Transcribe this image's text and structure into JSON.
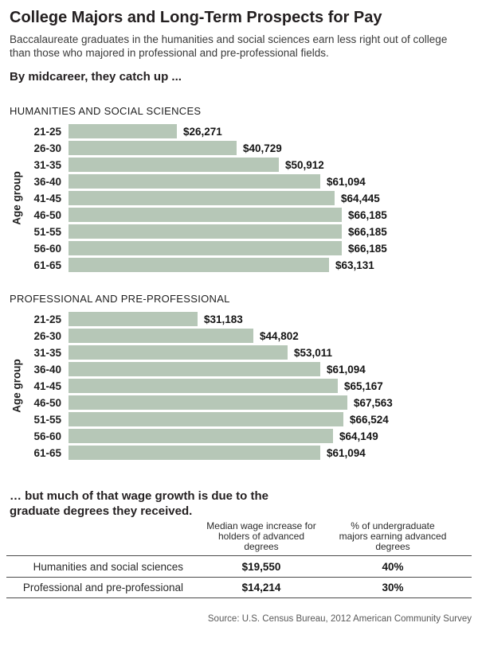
{
  "header": {
    "title": "College Majors and Long-Term Prospects for Pay",
    "subtitle": "Baccalaureate graduates in the humanities and social sciences earn less right out of college than those who majored in professional and pre-professional fields.",
    "midcareer_heading": "By midcareer, they catch up ..."
  },
  "chart_data": [
    {
      "type": "bar",
      "orientation": "horizontal",
      "title": "HUMANITIES AND SOCIAL SCIENCES",
      "ylabel": "Age group",
      "categories": [
        "21-25",
        "26-30",
        "31-35",
        "36-40",
        "41-45",
        "46-50",
        "51-55",
        "56-60",
        "61-65"
      ],
      "values": [
        26271,
        40729,
        50912,
        61094,
        64445,
        66185,
        66185,
        66185,
        63131
      ],
      "value_labels": [
        "$26,271",
        "$40,729",
        "$50,912",
        "$61,094",
        "$64,445",
        "$66,185",
        "$66,185",
        "$66,185",
        "$63,131"
      ],
      "xlim": [
        0,
        67563
      ],
      "grid": false,
      "legend": "none",
      "bar_color": "#b6c7b7"
    },
    {
      "type": "bar",
      "orientation": "horizontal",
      "title": "PROFESSIONAL AND PRE-PROFESSIONAL",
      "ylabel": "Age group",
      "categories": [
        "21-25",
        "26-30",
        "31-35",
        "36-40",
        "41-45",
        "46-50",
        "51-55",
        "56-60",
        "61-65"
      ],
      "values": [
        31183,
        44802,
        53011,
        61094,
        65167,
        67563,
        66524,
        64149,
        61094
      ],
      "value_labels": [
        "$31,183",
        "$44,802",
        "$53,011",
        "$61,094",
        "$65,167",
        "$67,563",
        "$66,524",
        "$64,149",
        "$61,094"
      ],
      "xlim": [
        0,
        67563
      ],
      "grid": false,
      "legend": "none",
      "bar_color": "#b6c7b7"
    }
  ],
  "wage_growth": {
    "heading": "… but much of that wage growth is due to the graduate degrees they received.",
    "table": {
      "col_headers": [
        "",
        "Median wage increase for holders of advanced degrees",
        "% of undergraduate majors earning advanced degrees"
      ],
      "rows": [
        {
          "label": "Humanities and social sciences",
          "wage_increase": "$19,550",
          "pct_advanced": "40%"
        },
        {
          "label": "Professional and pre-professional",
          "wage_increase": "$14,214",
          "pct_advanced": "30%"
        }
      ]
    }
  },
  "source": "Source: U.S. Census Bureau, 2012 American Community Survey",
  "colors": {
    "bar": "#b6c7b7",
    "title_text": "#231f20",
    "body_text": "#3a3a3a",
    "table_line": "#4a4a4a",
    "source_text": "#585858"
  }
}
